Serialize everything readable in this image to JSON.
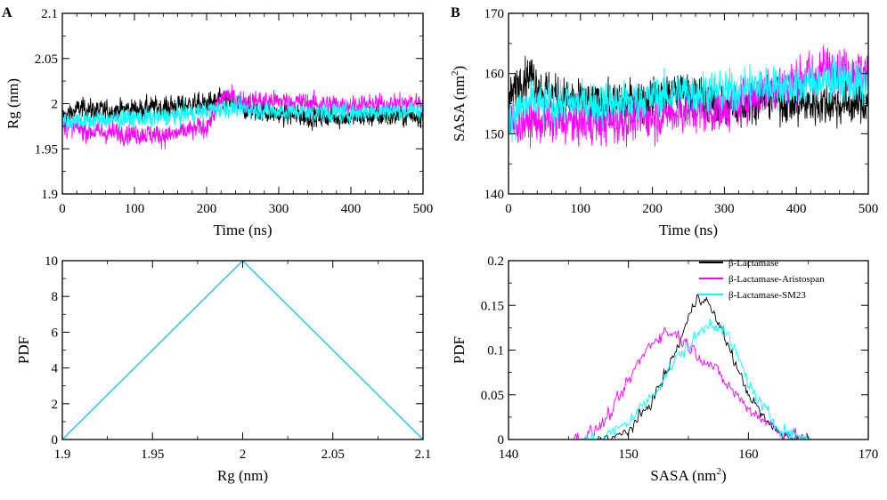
{
  "figure": {
    "panel_letters": [
      "A",
      "B"
    ]
  },
  "colors": {
    "lactamase": "#000000",
    "aristospan": "#ff00ff",
    "sm23": "#00ffff",
    "pdf_line": "#3cc8e6"
  },
  "chart_data": [
    {
      "id": "rg_time",
      "type": "line",
      "panel": "A",
      "title": "",
      "xlabel": "Time (ns)",
      "ylabel": "Rg (nm)",
      "xlim": [
        0,
        500
      ],
      "ylim": [
        1.9,
        2.1
      ],
      "xticks": [
        0,
        100,
        200,
        300,
        400,
        500
      ],
      "xtick_labels": [
        "0",
        "100",
        "200",
        "300",
        "400",
        "500"
      ],
      "yticks": [
        1.9,
        1.95,
        2.0,
        2.05,
        2.1
      ],
      "ytick_labels": [
        "1.9",
        "1.95",
        "2",
        "2.05",
        "2.1"
      ],
      "series": [
        {
          "name": "β-Lactamase",
          "color": "#000000",
          "noise": 0.01,
          "x": [
            0,
            25,
            50,
            100,
            150,
            200,
            225,
            250,
            300,
            350,
            400,
            450,
            500
          ],
          "y": [
            1.985,
            1.995,
            1.992,
            1.994,
            1.997,
            2.0,
            2.005,
            1.995,
            1.988,
            1.985,
            1.985,
            1.986,
            1.987
          ]
        },
        {
          "name": "β-Lactamase-Aristospan",
          "color": "#ff00ff",
          "noise": 0.01,
          "x": [
            0,
            25,
            50,
            100,
            150,
            200,
            225,
            250,
            300,
            350,
            400,
            450,
            500
          ],
          "y": [
            1.975,
            1.972,
            1.968,
            1.967,
            1.965,
            1.975,
            2.01,
            2.002,
            2.003,
            2.0,
            1.998,
            1.999,
            2.002
          ]
        },
        {
          "name": "β-Lactamase-SM23",
          "color": "#00ffff",
          "noise": 0.009,
          "x": [
            0,
            25,
            50,
            100,
            150,
            200,
            225,
            250,
            300,
            350,
            400,
            450,
            500
          ],
          "y": [
            1.98,
            1.982,
            1.982,
            1.984,
            1.986,
            1.992,
            1.996,
            1.995,
            1.992,
            1.99,
            1.99,
            1.992,
            1.993
          ]
        }
      ]
    },
    {
      "id": "sasa_time",
      "type": "line",
      "panel": "B",
      "title": "",
      "xlabel": "Time (ns)",
      "ylabel": "SASA (nm²)",
      "ylabel_main": "SASA (nm",
      "ylabel_sup": "2",
      "ylabel_end": ")",
      "xlim": [
        0,
        500
      ],
      "ylim": [
        140,
        170
      ],
      "xticks": [
        0,
        100,
        200,
        300,
        400,
        500
      ],
      "xtick_labels": [
        "0",
        "100",
        "200",
        "300",
        "400",
        "500"
      ],
      "yticks": [
        140,
        150,
        160,
        170
      ],
      "ytick_labels": [
        "140",
        "150",
        "160",
        "170"
      ],
      "series": [
        {
          "name": "β-Lactamase",
          "color": "#000000",
          "noise": 3.0,
          "x": [
            0,
            15,
            30,
            50,
            100,
            150,
            200,
            250,
            300,
            350,
            400,
            450,
            500
          ],
          "y": [
            155,
            159,
            160,
            157,
            155,
            155,
            156,
            157,
            154,
            156,
            155,
            155,
            155
          ]
        },
        {
          "name": "β-Lactamase-Aristospan",
          "color": "#ff00ff",
          "noise": 3.2,
          "x": [
            0,
            15,
            30,
            50,
            100,
            150,
            200,
            250,
            300,
            350,
            400,
            450,
            500
          ],
          "y": [
            151,
            152,
            152,
            152,
            152,
            152,
            153,
            154,
            154,
            157,
            159,
            161,
            160
          ]
        },
        {
          "name": "β-Lactamase-SM23",
          "color": "#00ffff",
          "noise": 3.0,
          "x": [
            0,
            15,
            30,
            50,
            100,
            150,
            200,
            250,
            300,
            350,
            400,
            450,
            500
          ],
          "y": [
            153,
            154,
            155,
            155,
            155,
            155,
            156,
            157,
            157,
            158,
            158,
            159,
            158
          ]
        }
      ]
    },
    {
      "id": "rg_pdf",
      "type": "line",
      "title": "",
      "xlabel": "Rg (nm)",
      "ylabel": "PDF",
      "xlim": [
        1.9,
        2.1
      ],
      "ylim": [
        0,
        10
      ],
      "xticks": [
        1.9,
        1.95,
        2.0,
        2.05,
        2.1
      ],
      "xtick_labels": [
        "1.9",
        "1.95",
        "2",
        "2.05",
        "2.1"
      ],
      "yticks": [
        0,
        2,
        4,
        6,
        8,
        10
      ],
      "ytick_labels": [
        "0",
        "2",
        "4",
        "6",
        "8",
        "10"
      ],
      "series": [
        {
          "name": "PDF",
          "color": "#3cc8e6",
          "noise": 0,
          "x": [
            1.9,
            2.0,
            2.1
          ],
          "y": [
            0,
            10,
            0
          ]
        }
      ]
    },
    {
      "id": "sasa_pdf",
      "type": "line",
      "title": "",
      "xlabel": "SASA (nm²)",
      "xlabel_main": "SASA (nm",
      "xlabel_sup": "2",
      "xlabel_end": ")",
      "ylabel": "PDF",
      "xlim": [
        140,
        170
      ],
      "ylim": [
        0,
        0.2
      ],
      "xticks": [
        140,
        150,
        160,
        170
      ],
      "xtick_labels": [
        "140",
        "150",
        "160",
        "170"
      ],
      "yticks": [
        0,
        0.05,
        0.1,
        0.15,
        0.2
      ],
      "ytick_labels": [
        "0",
        "0.05",
        "0.1",
        "0.15",
        "0.2"
      ],
      "legend_position": "top-right",
      "series": [
        {
          "name": "β-Lactamase",
          "color": "#000000",
          "noise": 0.006,
          "x": [
            145,
            147,
            149,
            150,
            151,
            152,
            153,
            154,
            155,
            155.8,
            156.5,
            157.5,
            158.5,
            159.5,
            160.5,
            161.5,
            162.5,
            163.5,
            164.5,
            165.5
          ],
          "y": [
            0,
            0,
            0.002,
            0.01,
            0.025,
            0.045,
            0.07,
            0.1,
            0.135,
            0.162,
            0.155,
            0.13,
            0.1,
            0.065,
            0.04,
            0.02,
            0.008,
            0.003,
            0.001,
            0
          ]
        },
        {
          "name": "β-Lactamase-Aristospan",
          "color": "#ff00ff",
          "noise": 0.007,
          "x": [
            145,
            146,
            147,
            148,
            149,
            150,
            151,
            152,
            153,
            154,
            155,
            156,
            157,
            158,
            159,
            160,
            161,
            162,
            163,
            164,
            165
          ],
          "y": [
            0,
            0.002,
            0.008,
            0.02,
            0.04,
            0.065,
            0.09,
            0.11,
            0.12,
            0.118,
            0.105,
            0.093,
            0.082,
            0.065,
            0.05,
            0.035,
            0.025,
            0.015,
            0.007,
            0.003,
            0
          ]
        },
        {
          "name": "β-Lactamase-SM23",
          "color": "#00ffff",
          "noise": 0.007,
          "x": [
            146,
            148,
            149,
            150,
            151,
            152,
            153,
            154,
            155,
            156,
            156.8,
            157.5,
            158.5,
            159.5,
            160.5,
            161.5,
            162.5,
            163.5,
            164.5,
            165.5
          ],
          "y": [
            0,
            0.003,
            0.01,
            0.02,
            0.035,
            0.05,
            0.07,
            0.09,
            0.105,
            0.12,
            0.132,
            0.128,
            0.11,
            0.08,
            0.05,
            0.03,
            0.015,
            0.006,
            0.002,
            0
          ]
        }
      ]
    }
  ],
  "legend": {
    "items": [
      {
        "label": "β-Lactamase",
        "color": "#000000"
      },
      {
        "label": "β-Lactamase-Aristospan",
        "color": "#ff00ff"
      },
      {
        "label": "β-Lactamase-SM23",
        "color": "#00ffff"
      }
    ]
  }
}
